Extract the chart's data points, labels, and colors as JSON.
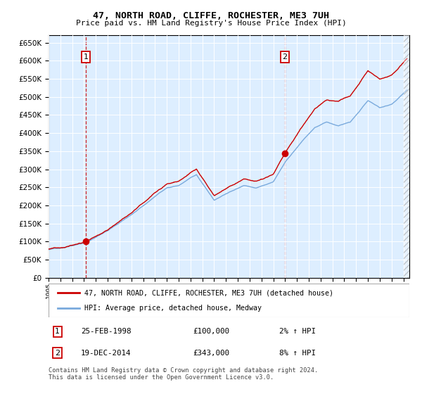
{
  "title": "47, NORTH ROAD, CLIFFE, ROCHESTER, ME3 7UH",
  "subtitle": "Price paid vs. HM Land Registry's House Price Index (HPI)",
  "legend_line1": "47, NORTH ROAD, CLIFFE, ROCHESTER, ME3 7UH (detached house)",
  "legend_line2": "HPI: Average price, detached house, Medway",
  "annotation1_date": "25-FEB-1998",
  "annotation1_price": "£100,000",
  "annotation1_hpi": "2% ↑ HPI",
  "annotation1_year": 1998.15,
  "annotation1_value": 100000,
  "annotation2_date": "19-DEC-2014",
  "annotation2_price": "£343,000",
  "annotation2_hpi": "8% ↑ HPI",
  "annotation2_year": 2014.97,
  "annotation2_value": 343000,
  "footer": "Contains HM Land Registry data © Crown copyright and database right 2024.\nThis data is licensed under the Open Government Licence v3.0.",
  "hpi_color": "#7aaadd",
  "price_color": "#cc0000",
  "plot_bg": "#ddeeff",
  "ylim": [
    0,
    670000
  ],
  "xlim_start": 1995.0,
  "xlim_end": 2025.5
}
